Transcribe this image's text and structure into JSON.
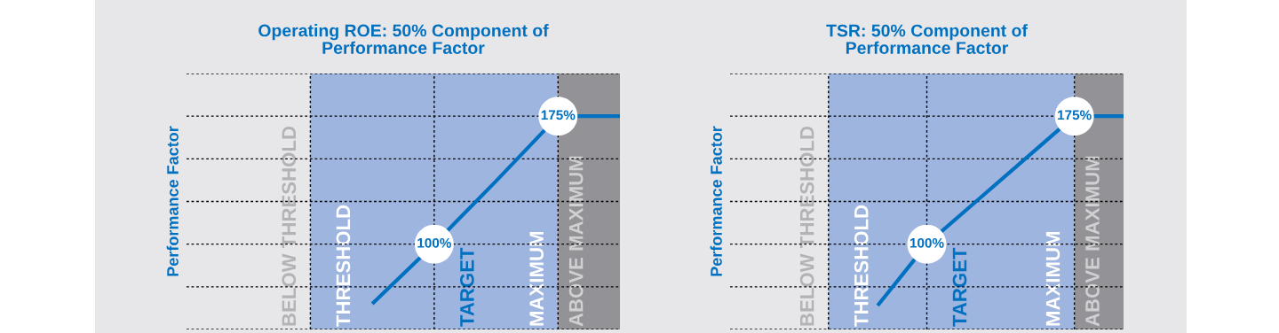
{
  "chart_data": [
    {
      "type": "line",
      "title": "Operating ROE: 50% Component of\nPerformance Factor",
      "ylabel": "Performance Factor",
      "line_style": "solid",
      "grid": true,
      "tick_labels": false,
      "categories": [
        null,
        null,
        null,
        null,
        null,
        null,
        null,
        null
      ],
      "series": [
        {
          "color": "#0070c0",
          "values": [
            null,
            null,
            null,
            65,
            100,
            137,
            175,
            175
          ],
          "value_labels": [
            null,
            null,
            null,
            null,
            "100%",
            null,
            "175%",
            null
          ]
        }
      ],
      "ylim": [
        50,
        200
      ],
      "yticks": [
        {
          "value": 50,
          "label": null
        },
        {
          "value": 75,
          "label": null
        },
        {
          "value": 100,
          "label": null
        },
        {
          "value": 125,
          "label": null
        },
        {
          "value": 150,
          "label": null
        },
        {
          "value": 175,
          "label": null
        },
        {
          "value": 200,
          "label": null
        }
      ],
      "annotations": [
        "BELOW THRESHOLD",
        "THRESHOLD",
        "TARGET",
        "MAXIMUM",
        "ABOVE MAXIMUM"
      ]
    },
    {
      "type": "line",
      "title": "TSR: 50% Component of\nPerformance Factor",
      "ylabel": "Performance Factor",
      "line_style": "solid",
      "grid": true,
      "tick_labels": false,
      "categories": [
        null,
        null,
        null,
        null,
        null,
        null,
        null,
        null,
        null
      ],
      "series": [
        {
          "color": "#0070c0",
          "values": [
            null,
            null,
            null,
            64,
            100,
            125,
            150,
            175,
            175
          ],
          "value_labels": [
            null,
            null,
            null,
            null,
            "100%",
            null,
            null,
            "175%",
            null
          ]
        }
      ],
      "ylim": [
        50,
        200
      ],
      "yticks": [
        {
          "value": 50,
          "label": null
        },
        {
          "value": 75,
          "label": null
        },
        {
          "value": 100,
          "label": null
        },
        {
          "value": 125,
          "label": null
        },
        {
          "value": 150,
          "label": null
        },
        {
          "value": 175,
          "label": null
        },
        {
          "value": 200,
          "label": null
        }
      ],
      "annotations": [
        "BELOW THRESHOLD",
        "THRESHOLD",
        "TARGET",
        "MAXIMUM",
        "ABOVE MAXIMUM"
      ]
    }
  ]
}
